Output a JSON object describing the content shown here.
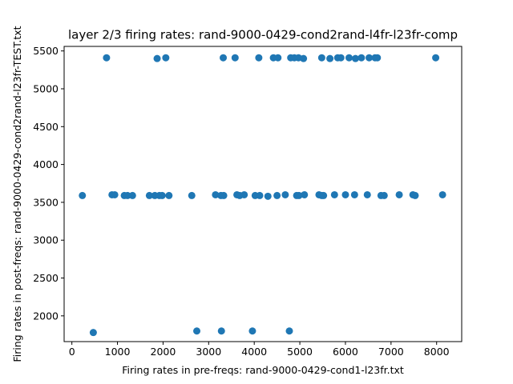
{
  "chart_data": {
    "type": "scatter",
    "title": "layer 2/3 firing rates: rand-9000-0429-cond2rand-l4fr-l23fr-comp",
    "xlabel": "Firing rates in pre-freqs: rand-9000-0429-cond1-l23fr.txt",
    "ylabel": "Firing rates in post-freqs: rand-9000-0429-cond2rand-l23fr-TEST.txt",
    "xlim": [
      -170,
      8550
    ],
    "ylim": [
      1660,
      5560
    ],
    "xticks": [
      0,
      1000,
      2000,
      3000,
      4000,
      5000,
      6000,
      7000,
      8000
    ],
    "yticks": [
      2000,
      2500,
      3000,
      3500,
      4000,
      4500,
      5000,
      5500
    ],
    "grid": false,
    "marker_color": "#1f77b4",
    "series": [
      {
        "x": [
          760,
          1870,
          2060,
          3320,
          3580,
          4100,
          4420,
          4520,
          4800,
          4880,
          4970,
          5080,
          5480,
          5660,
          5830,
          5900,
          6080,
          6220,
          6350,
          6520,
          6650,
          6700,
          7980,
          230,
          880,
          940,
          1150,
          1220,
          1330,
          1700,
          1820,
          1920,
          1980,
          2130,
          2630,
          3150,
          3270,
          3330,
          3620,
          3680,
          3780,
          4020,
          4120,
          4300,
          4500,
          4680,
          4930,
          4980,
          5100,
          5420,
          5480,
          5520,
          5760,
          6000,
          6200,
          6480,
          6780,
          6850,
          7180,
          7480,
          7530,
          8130,
          470,
          2740,
          3280,
          3960,
          4770
        ],
        "y": [
          5410,
          5400,
          5410,
          5410,
          5410,
          5410,
          5410,
          5410,
          5410,
          5410,
          5410,
          5400,
          5410,
          5400,
          5410,
          5410,
          5410,
          5400,
          5410,
          5410,
          5410,
          5410,
          5410,
          3590,
          3600,
          3600,
          3590,
          3590,
          3590,
          3590,
          3590,
          3590,
          3590,
          3590,
          3590,
          3600,
          3590,
          3590,
          3600,
          3590,
          3600,
          3590,
          3590,
          3580,
          3590,
          3600,
          3590,
          3590,
          3600,
          3600,
          3590,
          3590,
          3600,
          3600,
          3600,
          3600,
          3590,
          3590,
          3600,
          3600,
          3590,
          3600,
          1780,
          1800,
          1800,
          1800,
          1800
        ]
      }
    ]
  }
}
